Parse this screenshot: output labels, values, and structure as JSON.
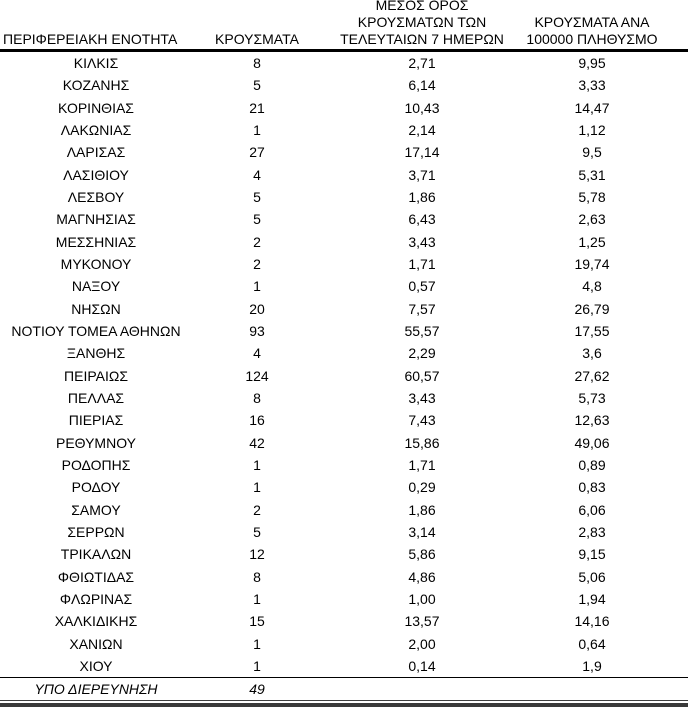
{
  "table": {
    "columns": [
      {
        "label": "ΠΕΡΙΦΕΡΕΙΑΚΗ ΕΝΟΤΗΤΑ"
      },
      {
        "label": "ΚΡΟΥΣΜΑΤΑ"
      },
      {
        "label": "ΜΕΣΟΣ ΟΡΟΣ\nΚΡΟΥΣΜΑΤΩΝ ΤΩΝ\nΤΕΛΕΥΤΑΙΩΝ 7 ΗΜΕΡΩΝ"
      },
      {
        "label": "ΚΡΟΥΣΜΑΤΑ ΑΝΑ\n100000 ΠΛΗΘΥΣΜΟ"
      }
    ],
    "rows": [
      {
        "region": "ΚΙΛΚΙΣ",
        "cases": "8",
        "avg7": "2,71",
        "per100k": "9,95"
      },
      {
        "region": "ΚΟΖΑΝΗΣ",
        "cases": "5",
        "avg7": "6,14",
        "per100k": "3,33"
      },
      {
        "region": "ΚΟΡΙΝΘΙΑΣ",
        "cases": "21",
        "avg7": "10,43",
        "per100k": "14,47"
      },
      {
        "region": "ΛΑΚΩΝΙΑΣ",
        "cases": "1",
        "avg7": "2,14",
        "per100k": "1,12"
      },
      {
        "region": "ΛΑΡΙΣΑΣ",
        "cases": "27",
        "avg7": "17,14",
        "per100k": "9,5"
      },
      {
        "region": "ΛΑΣΙΘΙΟΥ",
        "cases": "4",
        "avg7": "3,71",
        "per100k": "5,31"
      },
      {
        "region": "ΛΕΣΒΟΥ",
        "cases": "5",
        "avg7": "1,86",
        "per100k": "5,78"
      },
      {
        "region": "ΜΑΓΝΗΣΙΑΣ",
        "cases": "5",
        "avg7": "6,43",
        "per100k": "2,63"
      },
      {
        "region": "ΜΕΣΣΗΝΙΑΣ",
        "cases": "2",
        "avg7": "3,43",
        "per100k": "1,25"
      },
      {
        "region": "ΜΥΚΟΝΟΥ",
        "cases": "2",
        "avg7": "1,71",
        "per100k": "19,74"
      },
      {
        "region": "ΝΑΞΟΥ",
        "cases": "1",
        "avg7": "0,57",
        "per100k": "4,8"
      },
      {
        "region": "ΝΗΣΩΝ",
        "cases": "20",
        "avg7": "7,57",
        "per100k": "26,79"
      },
      {
        "region": "ΝΟΤΙΟΥ ΤΟΜΕΑ ΑΘΗΝΩΝ",
        "cases": "93",
        "avg7": "55,57",
        "per100k": "17,55"
      },
      {
        "region": "ΞΑΝΘΗΣ",
        "cases": "4",
        "avg7": "2,29",
        "per100k": "3,6"
      },
      {
        "region": "ΠΕΙΡΑΙΩΣ",
        "cases": "124",
        "avg7": "60,57",
        "per100k": "27,62"
      },
      {
        "region": "ΠΕΛΛΑΣ",
        "cases": "8",
        "avg7": "3,43",
        "per100k": "5,73"
      },
      {
        "region": "ΠΙΕΡΙΑΣ",
        "cases": "16",
        "avg7": "7,43",
        "per100k": "12,63"
      },
      {
        "region": "ΡΕΘΥΜΝΟΥ",
        "cases": "42",
        "avg7": "15,86",
        "per100k": "49,06"
      },
      {
        "region": "ΡΟΔΟΠΗΣ",
        "cases": "1",
        "avg7": "1,71",
        "per100k": "0,89"
      },
      {
        "region": "ΡΟΔΟΥ",
        "cases": "1",
        "avg7": "0,29",
        "per100k": "0,83"
      },
      {
        "region": "ΣΑΜΟΥ",
        "cases": "2",
        "avg7": "1,86",
        "per100k": "6,06"
      },
      {
        "region": "ΣΕΡΡΩΝ",
        "cases": "5",
        "avg7": "3,14",
        "per100k": "2,83"
      },
      {
        "region": "ΤΡΙΚΑΛΩΝ",
        "cases": "12",
        "avg7": "5,86",
        "per100k": "9,15"
      },
      {
        "region": "ΦΘΙΩΤΙΔΑΣ",
        "cases": "8",
        "avg7": "4,86",
        "per100k": "5,06"
      },
      {
        "region": "ΦΛΩΡΙΝΑΣ",
        "cases": "1",
        "avg7": "1,00",
        "per100k": "1,94"
      },
      {
        "region": "ΧΑΛΚΙΔΙΚΗΣ",
        "cases": "15",
        "avg7": "13,57",
        "per100k": "14,16"
      },
      {
        "region": "ΧΑΝΙΩΝ",
        "cases": "1",
        "avg7": "2,00",
        "per100k": "0,64"
      },
      {
        "region": "ΧΙΟΥ",
        "cases": "1",
        "avg7": "0,14",
        "per100k": "1,9"
      }
    ],
    "footer_row": {
      "region": "ΥΠΟ ΔΙΕΡΕΥΝΗΣΗ",
      "cases": "49",
      "avg7": "",
      "per100k": ""
    }
  }
}
